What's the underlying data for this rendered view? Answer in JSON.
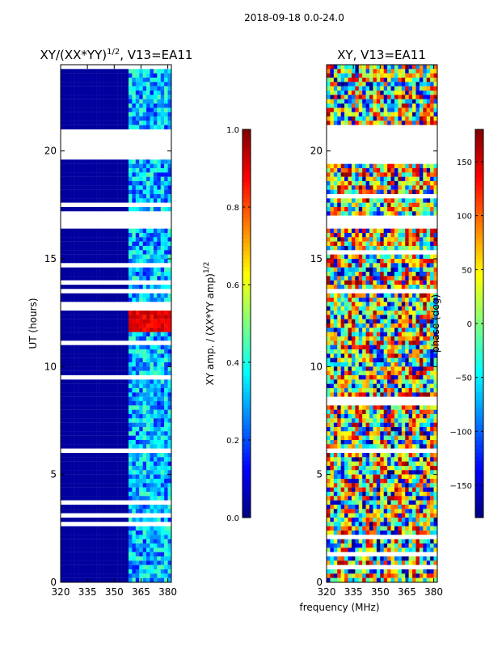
{
  "figure": {
    "suptitle": "2018-09-18 0.0-24.0",
    "xlabel": "frequency (MHz)",
    "ylabel": "UT (hours)"
  },
  "colors": {
    "jet": [
      "#00007f",
      "#0000ff",
      "#007fff",
      "#00ffff",
      "#7fff7f",
      "#ffff00",
      "#ff7f00",
      "#ff0000",
      "#7f0000"
    ],
    "gap": "#ffffff",
    "frame": "#000000"
  },
  "chart_data": [
    {
      "type": "heatmap",
      "title_main": "XY/(XX*YY)",
      "title_sup": "1/2",
      "title_tail": ", V13=EA11",
      "xlabel": "frequency (MHz)",
      "ylabel": "UT (hours)",
      "xlim": [
        320,
        382
      ],
      "ylim": [
        0,
        24
      ],
      "xticks": [
        320,
        335,
        350,
        365,
        380
      ],
      "yticks": [
        0,
        5,
        10,
        15,
        20
      ],
      "colorbar": {
        "label_main": "XY amp. / (XX*YY amp)",
        "label_sup": "1/2",
        "range": [
          0.0,
          1.0
        ],
        "ticks": [
          "0.0",
          "0.2",
          "0.4",
          "0.6",
          "0.8",
          "1.0"
        ],
        "tick_values": [
          0.0,
          0.2,
          0.4,
          0.6,
          0.8,
          1.0
        ]
      },
      "gaps_hours": [
        [
          19.6,
          21.0
        ],
        [
          16.5,
          17.1
        ],
        [
          5.9,
          6.3
        ]
      ],
      "features": {
        "active_band_mhz": [
          359,
          382
        ],
        "bright_block_hours": [
          11.7,
          12.9
        ],
        "bright_block_value": 0.95,
        "baseline_value": 0.03
      }
    },
    {
      "type": "heatmap",
      "title_main": "XY, V13=EA11",
      "xlabel": "frequency (MHz)",
      "ylabel": "",
      "xlim": [
        320,
        382
      ],
      "ylim": [
        0,
        24
      ],
      "xticks": [
        320,
        335,
        350,
        365,
        380
      ],
      "yticks": [
        0,
        5,
        10,
        15,
        20
      ],
      "colorbar": {
        "label_main": "phase (deg)",
        "range": [
          -180,
          180
        ],
        "ticks": [
          "150",
          "100",
          "50",
          "0",
          "−50",
          "−100",
          "−150"
        ],
        "tick_values": [
          150,
          100,
          50,
          0,
          -50,
          -100,
          -150
        ]
      },
      "gaps_hours": [
        [
          19.4,
          21.0
        ],
        [
          16.5,
          17.0
        ],
        [
          5.9,
          6.2
        ]
      ]
    }
  ]
}
